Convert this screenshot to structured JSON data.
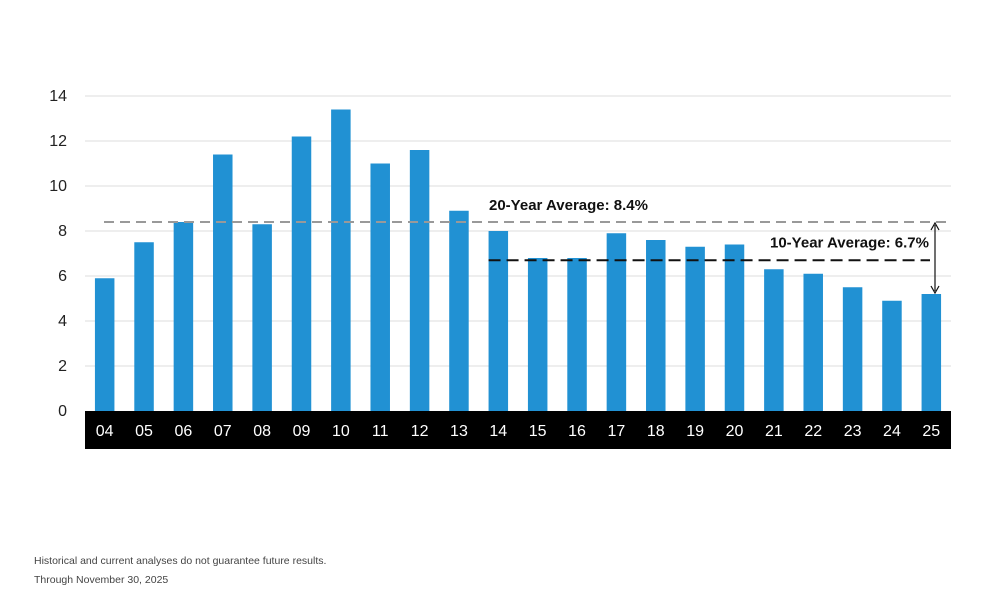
{
  "chart_data": {
    "type": "bar",
    "categories": [
      "04",
      "05",
      "06",
      "07",
      "08",
      "09",
      "10",
      "11",
      "12",
      "13",
      "14",
      "15",
      "16",
      "17",
      "18",
      "19",
      "20",
      "21",
      "22",
      "23",
      "24",
      "25"
    ],
    "values": [
      5.9,
      7.5,
      8.4,
      11.4,
      8.3,
      12.2,
      13.4,
      11.0,
      11.6,
      8.9,
      8.0,
      6.8,
      6.8,
      7.9,
      7.6,
      7.3,
      7.4,
      6.3,
      6.1,
      5.5,
      4.9,
      5.2
    ],
    "ylim": [
      0,
      14
    ],
    "yticks": [
      0,
      2,
      4,
      6,
      8,
      10,
      12,
      14
    ],
    "grid": true,
    "bar_color": "#2191d3",
    "axis_band_color": "#000000",
    "reference_lines": [
      {
        "value": 8.4,
        "label": "20-Year Average: 8.4%",
        "start_category": "04",
        "color": "#999999"
      },
      {
        "value": 6.7,
        "label": "10-Year Average: 6.7%",
        "start_category": "14",
        "color": "#111111"
      }
    ]
  },
  "footnotes": {
    "disclaimer": "Historical and current analyses do not guarantee future results.",
    "date": "Through November 30, 2025"
  }
}
